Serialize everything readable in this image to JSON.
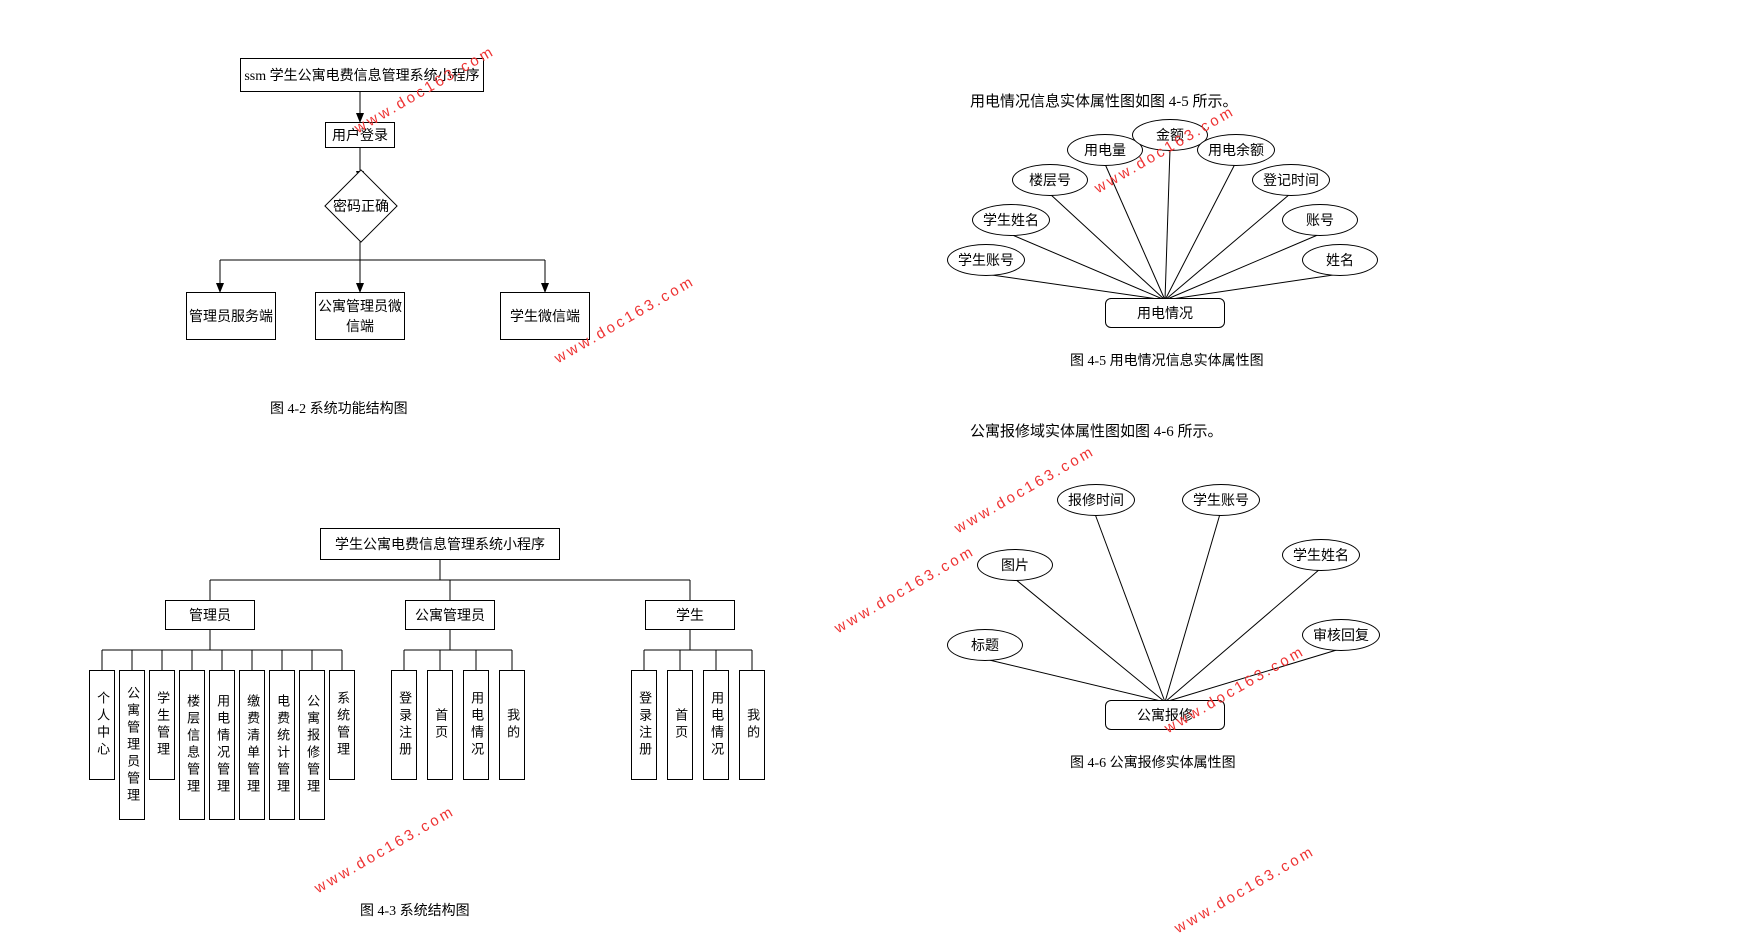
{
  "watermark": "www.doc163.com",
  "fig42": {
    "cap": "图 4-2 系统功能结构图",
    "top": "ssm 学生公寓电费信息管理系统小程序",
    "login": "用户登录",
    "check": "密码正确",
    "b1": "管理员服务端",
    "b2": "公寓管理员微信端",
    "b3": "学生微信端"
  },
  "fig43": {
    "cap": "图 4-3 系统结构图",
    "root": "学生公寓电费信息管理系统小程序",
    "g1": "管理员",
    "g2": "公寓管理员",
    "g3": "学生",
    "admin": [
      "个人中心",
      "公寓管理员管理",
      "学生管理",
      "楼层信息管理",
      "用电情况管理",
      "缴费清单管理",
      "电费统计管理",
      "公寓报修管理",
      "系统管理"
    ],
    "mgr": [
      "登录注册",
      "首页",
      "用电情况",
      "我的"
    ],
    "stu": [
      "登录注册",
      "首页",
      "用电情况",
      "我的"
    ]
  },
  "fig45": {
    "intro": "用电情况信息实体属性图如图 4-5 所示。",
    "cap": "图 4-5 用电情况信息实体属性图",
    "center": "用电情况",
    "attrs": [
      "学生账号",
      "学生姓名",
      "楼层号",
      "用电量",
      "金额",
      "用电余额",
      "登记时间",
      "账号",
      "姓名"
    ]
  },
  "fig46": {
    "intro": "公寓报修域实体属性图如图 4-6 所示。",
    "cap": "图 4-6 公寓报修实体属性图",
    "center": "公寓报修",
    "attrs": [
      "标题",
      "图片",
      "报修时间",
      "学生账号",
      "学生姓名",
      "审核回复"
    ]
  },
  "style": {
    "stroke": "#000",
    "stroke_width": 1,
    "bg": "#fff",
    "wm_color": "#e33"
  }
}
